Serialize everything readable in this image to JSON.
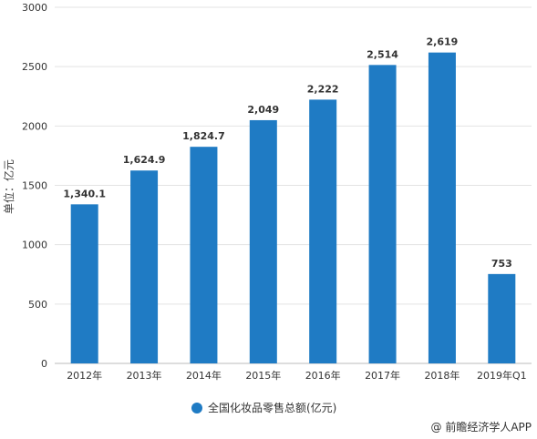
{
  "chart_data": {
    "type": "bar",
    "categories": [
      "2012年",
      "2013年",
      "2014年",
      "2015年",
      "2016年",
      "2017年",
      "2018年",
      "2019年Q1"
    ],
    "series": [
      {
        "name": "全国化妆品零售总额(亿元)",
        "values": [
          1340.1,
          1624.9,
          1824.7,
          2049,
          2222,
          2514,
          2619,
          753
        ],
        "labels": [
          "1,340.1",
          "1,624.9",
          "1,824.7",
          "2,049",
          "2,222",
          "2,514",
          "2,619",
          "753"
        ],
        "color": "#1F7BC4"
      }
    ],
    "ylabel": "单位：亿元",
    "ylim": [
      0,
      3000
    ],
    "yticks": [
      0,
      500,
      1000,
      1500,
      2000,
      2500,
      3000
    ],
    "grid": true,
    "legend_position": "bottom-center"
  },
  "credit": "@ 前瞻经济学人APP"
}
